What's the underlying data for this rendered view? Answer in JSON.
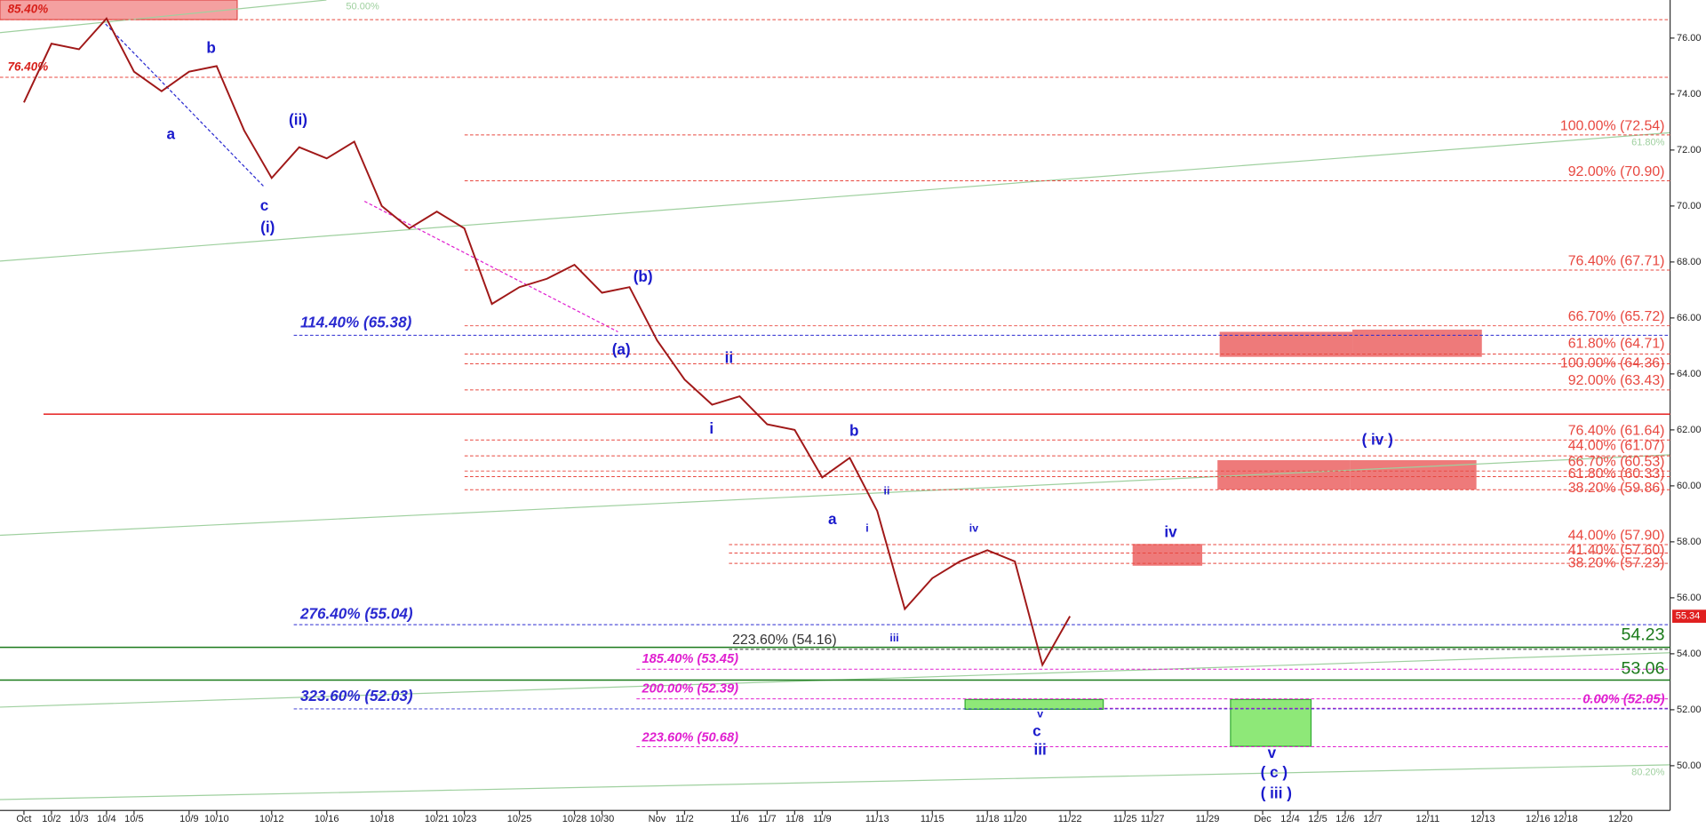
{
  "chart_data": {
    "type": "line",
    "categories": [
      "Oct",
      "10/2",
      "10/3",
      "10/4",
      "10/5",
      null,
      "10/9",
      "10/10",
      null,
      "10/12",
      null,
      "10/16",
      null,
      "10/18",
      null,
      "10/21",
      "10/23",
      null,
      "10/25",
      null,
      "10/28",
      "10/30",
      null,
      "Nov",
      "11/2",
      null,
      "11/6",
      "11/7",
      "11/8",
      "11/9",
      null,
      "11/13",
      null,
      "11/15",
      null,
      "11/18",
      "11/20",
      null,
      "11/22",
      null,
      "11/25",
      "11/27",
      null,
      "11/29",
      null,
      "Dec",
      "12/4",
      "12/5",
      "12/6",
      "12/7",
      null,
      "12/11",
      null,
      "12/13",
      null,
      "12/16",
      "12/18",
      null,
      "12/20",
      null
    ],
    "values": [
      73.7,
      75.8,
      75.6,
      76.7,
      74.8,
      74.1,
      74.8,
      75.0,
      72.7,
      71.0,
      72.1,
      71.7,
      72.3,
      70.0,
      69.2,
      69.8,
      69.2,
      66.5,
      67.1,
      67.4,
      67.9,
      66.9,
      67.1,
      65.2,
      63.8,
      62.9,
      63.2,
      62.2,
      62.0,
      60.3,
      61.0,
      59.1,
      55.6,
      56.7,
      57.3,
      57.7,
      57.3,
      53.6,
      55.34,
      null,
      null,
      null,
      null,
      null,
      null,
      null,
      null,
      null,
      null,
      null,
      null,
      null,
      null,
      null,
      null,
      null,
      null,
      null,
      null,
      null
    ],
    "color": "#a01818",
    "ylim": [
      48.4,
      77.36
    ],
    "yticks": [
      {
        "value": 50,
        "label": "50.00"
      },
      {
        "value": 52,
        "label": "52.00"
      },
      {
        "value": 54,
        "label": "54.00"
      },
      {
        "value": 56,
        "label": "56.00"
      },
      {
        "value": 58,
        "label": "58.00"
      },
      {
        "value": 60,
        "label": "60.00"
      },
      {
        "value": 62,
        "label": "62.00"
      },
      {
        "value": 64,
        "label": "64.00"
      },
      {
        "value": 66,
        "label": "66.00"
      },
      {
        "value": 68,
        "label": "68.00"
      },
      {
        "value": 70,
        "label": "70.00"
      },
      {
        "value": 72,
        "label": "72.00"
      },
      {
        "value": 74,
        "label": "74.00"
      },
      {
        "value": 76,
        "label": "76.00"
      }
    ],
    "last_price": 55.34,
    "levels": [
      {
        "label": "85.40%",
        "value": 76.66,
        "color": "#e8473f",
        "dash": true
      },
      {
        "label": "76.40%",
        "value": 74.6,
        "color": "#e8473f",
        "dash": true
      },
      {
        "label": "100.00% (72.54)",
        "value": 72.54,
        "color": "#e8473f",
        "dash": true
      },
      {
        "label": "92.00% (70.90)",
        "value": 70.9,
        "color": "#e8473f",
        "dash": true
      },
      {
        "label": "76.40% (67.71)",
        "value": 67.71,
        "color": "#e8473f",
        "dash": true
      },
      {
        "label": "66.70% (65.72)",
        "value": 65.72,
        "color": "#e8473f",
        "dash": true
      },
      {
        "label": "61.80% (64.71)",
        "value": 64.71,
        "color": "#e8473f",
        "dash": true
      },
      {
        "label": "100.00% (64.36)",
        "value": 64.36,
        "color": "#e8473f",
        "dash": true
      },
      {
        "label": "92.00% (63.43)",
        "value": 63.43,
        "color": "#e8473f",
        "dash": true
      },
      {
        "label": "76.40% (61.64)",
        "value": 61.64,
        "color": "#e8473f",
        "dash": true
      },
      {
        "label": "44.00% (61.07)",
        "value": 61.07,
        "color": "#e8473f",
        "dash": true
      },
      {
        "label": "66.70% (60.53)",
        "value": 60.53,
        "color": "#e8473f",
        "dash": true
      },
      {
        "label": "61.80% (60.33)",
        "value": 60.33,
        "color": "#e8473f",
        "dash": true
      },
      {
        "label": "38.20% (59.86)",
        "value": 59.86,
        "color": "#e8473f",
        "dash": true
      },
      {
        "label": "44.00% (57.90)",
        "value": 57.9,
        "color": "#e8473f",
        "dash": true
      },
      {
        "label": "41.40% (57.60)",
        "value": 57.6,
        "color": "#e8473f",
        "dash": true
      },
      {
        "label": "38.20% (57.23)",
        "value": 57.23,
        "color": "#e8473f",
        "dash": true
      },
      {
        "label": "0.00% (52.05)",
        "value": 52.05,
        "color": "#e020d0",
        "dash": true
      },
      {
        "label": "114.40% (65.38)",
        "value": 65.38,
        "color": "#2a2ad0",
        "dash": true
      },
      {
        "label": "276.40% (55.04)",
        "value": 55.04,
        "color": "#2a2ad0",
        "dash": true
      },
      {
        "label": "323.60% (52.03)",
        "value": 52.03,
        "color": "#2a2ad0",
        "dash": true
      },
      {
        "label": "185.40% (53.45)",
        "value": 53.45,
        "color": "#e020d0",
        "dash": true
      },
      {
        "label": "200.00% (52.39)",
        "value": 52.39,
        "color": "#e020d0",
        "dash": true
      },
      {
        "label": "223.60% (50.68)",
        "value": 50.68,
        "color": "#e020d0",
        "dash": true
      },
      {
        "label": "223.60% (54.16)",
        "value": 54.16,
        "color": "#333333",
        "dash": true
      },
      {
        "value": 62.56,
        "color": "#e83030",
        "dash": false
      },
      {
        "label": "54.23",
        "value": 54.23,
        "color": "#1a7a1a",
        "dash": false
      },
      {
        "label": "53.06",
        "value": 53.06,
        "color": "#1a7a1a",
        "dash": false
      }
    ],
    "trend_labels": [
      "50.00%",
      "61.80%",
      "80.20%"
    ],
    "wave_labels": [
      "a",
      "b",
      "c",
      "(i)",
      "(ii)",
      "(b)",
      "(a)",
      "ii",
      "i",
      "b",
      "a",
      "ii",
      "i",
      "iii",
      "iv",
      "iv",
      "( iv )",
      "v",
      "c",
      "iii",
      "v",
      "( c )",
      "( iii )"
    ]
  }
}
